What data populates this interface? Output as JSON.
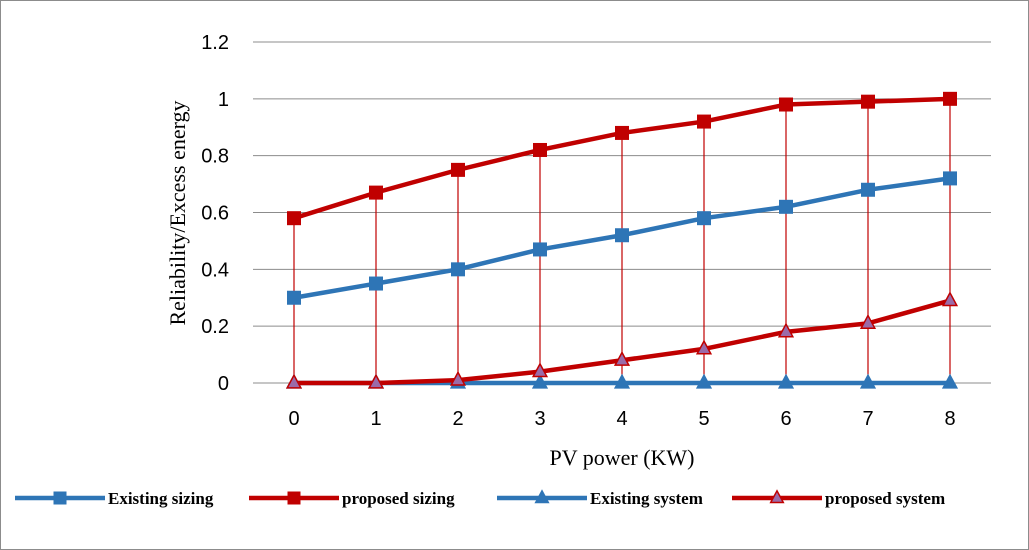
{
  "chart_data": {
    "type": "line",
    "title": "",
    "xlabel": "PV power (KW)",
    "ylabel": "Reliability/Excess energy",
    "x": [
      0,
      1,
      2,
      3,
      4,
      5,
      6,
      7,
      8
    ],
    "x_tick_labels": [
      "0",
      "1",
      "2",
      "3",
      "4",
      "5",
      "6",
      "7",
      "8"
    ],
    "y_tick_labels": [
      "0",
      "0.2",
      "0.4",
      "0.6",
      "0.8",
      "1",
      "1.2"
    ],
    "ylim": [
      0,
      1.2
    ],
    "y_ticks": [
      0,
      0.2,
      0.4,
      0.6,
      0.8,
      1.0,
      1.2
    ],
    "grid": "horizontal",
    "legend_position": "bottom",
    "series": [
      {
        "name": "Existing sizing",
        "color": "#2E75B6",
        "marker": "square",
        "values": [
          0.3,
          0.35,
          0.4,
          0.47,
          0.52,
          0.58,
          0.62,
          0.68,
          0.72
        ]
      },
      {
        "name": "proposed sizing",
        "color": "#C00000",
        "marker": "square",
        "values": [
          0.58,
          0.67,
          0.75,
          0.82,
          0.88,
          0.92,
          0.98,
          0.99,
          1.0
        ]
      },
      {
        "name": "Existing system",
        "color": "#2E75B6",
        "marker": "triangle",
        "values": [
          0,
          0,
          0,
          0,
          0,
          0,
          0,
          0,
          0
        ]
      },
      {
        "name": "proposed system",
        "color": "#C00000",
        "marker": "triangle",
        "marker_fill": "#9B6BA8",
        "values": [
          0,
          0,
          0.01,
          0.04,
          0.08,
          0.12,
          0.18,
          0.21,
          0.29
        ]
      }
    ],
    "drop_lines": {
      "color": "#C00000",
      "from_series": "proposed sizing"
    }
  }
}
